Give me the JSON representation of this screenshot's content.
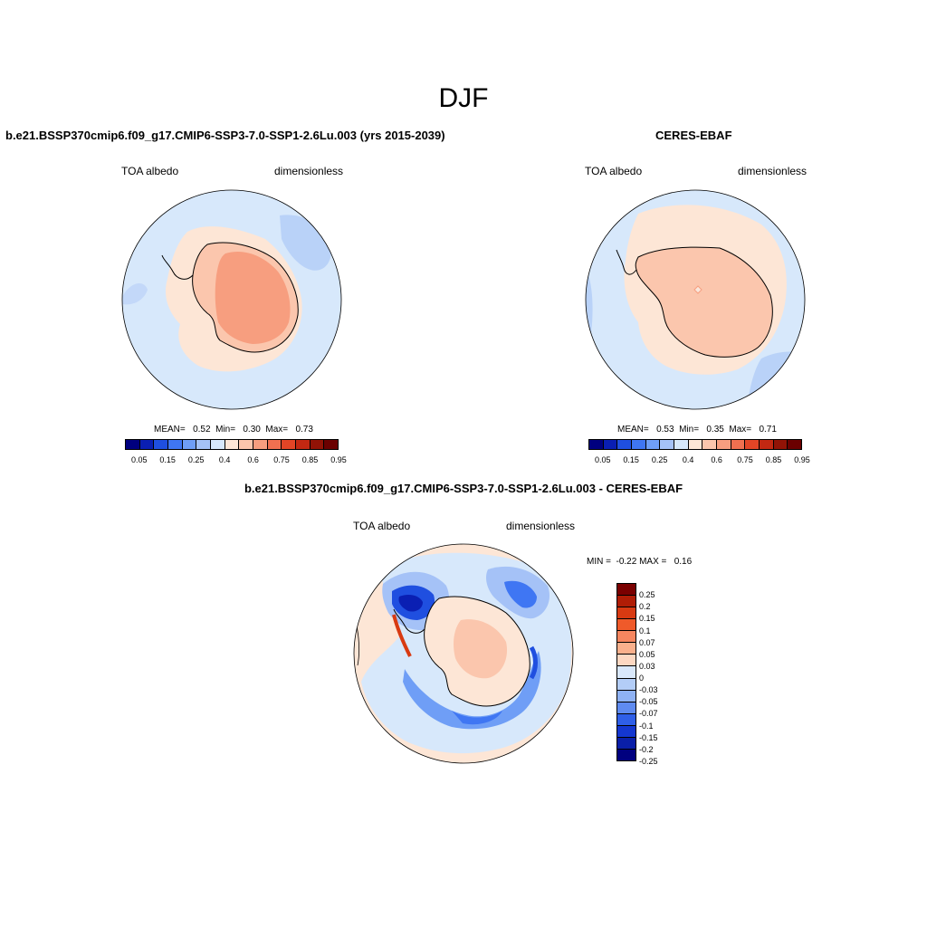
{
  "figure": {
    "title": "DJF"
  },
  "panel_left": {
    "title": "b.e21.BSSP370cmip6.f09_g17.CMIP6-SSP3-7.0-SSP1-2.6Lu.003 (yrs 2015-2039)",
    "left_label": "TOA albedo",
    "right_label": "dimensionless",
    "stats": "MEAN=   0.52  Min=   0.30  Max=   0.73"
  },
  "panel_right": {
    "title": "CERES-EBAF",
    "left_label": "TOA albedo",
    "right_label": "dimensionless",
    "stats": "MEAN=   0.53  Min=   0.35  Max=   0.71"
  },
  "panel_diff": {
    "title": "b.e21.BSSP370cmip6.f09_g17.CMIP6-SSP3-7.0-SSP1-2.6Lu.003 - CERES-EBAF",
    "left_label": "TOA albedo",
    "right_label": "dimensionless",
    "stats": "MIN =  -0.22 MAX =   0.16"
  },
  "colorbar_abs": {
    "colors": [
      "#00007f",
      "#0a1fb3",
      "#1f4fe0",
      "#3f76f3",
      "#6f9ef6",
      "#a5c2f7",
      "#d7e8fb",
      "#fde6d6",
      "#fbc6ad",
      "#f79e7f",
      "#f07050",
      "#e24526",
      "#c22812",
      "#921306",
      "#6b0000"
    ],
    "tick_labels": [
      "0.05",
      "0.15",
      "0.25",
      "0.4",
      "0.6",
      "0.75",
      "0.85",
      "0.95"
    ],
    "tick_at": [
      1,
      3,
      5,
      7,
      9,
      11,
      13,
      15
    ]
  },
  "colorbar_diff": {
    "colors": [
      "#7a0000",
      "#b01d06",
      "#d83a12",
      "#ef5a2a",
      "#f6865f",
      "#fab08c",
      "#fdd8c2",
      "#d9e8fb",
      "#b3cdf7",
      "#8fb2f4",
      "#5f8bf0",
      "#2f5fe8",
      "#1437d0",
      "#0a1fa8",
      "#00007f"
    ],
    "tick_labels": [
      "0.25",
      "0.2",
      "0.15",
      "0.1",
      "0.07",
      "0.05",
      "0.03",
      "0",
      "-0.03",
      "-0.05",
      "-0.07",
      "-0.1",
      "-0.15",
      "-0.2",
      "-0.25"
    ]
  },
  "colors": {
    "ocean_light": "#d7e8fb",
    "ocean_mid": "#a5c2f7",
    "land_orange": "#f79e7f",
    "land_peach": "#fbc6ad",
    "near_zero_peach": "#fde6d6"
  }
}
